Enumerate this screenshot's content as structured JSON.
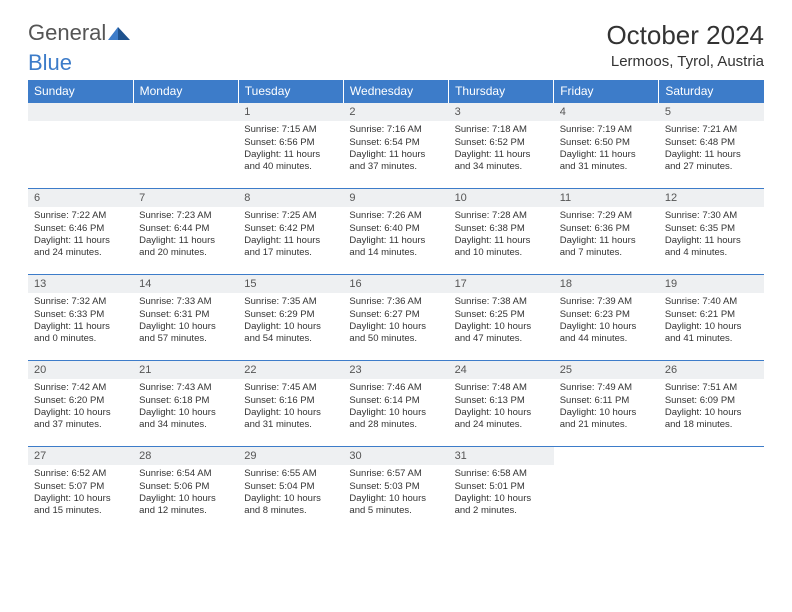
{
  "brand": {
    "part1": "General",
    "part2": "Blue"
  },
  "title": "October 2024",
  "location": "Lermoos, Tyrol, Austria",
  "colors": {
    "header_bg": "#3d7cc9",
    "header_text": "#ffffff",
    "daynum_bg": "#eef0f2",
    "body_text": "#333333",
    "rule": "#3d7cc9",
    "page_bg": "#ffffff"
  },
  "typography": {
    "title_fontsize": 26,
    "location_fontsize": 15,
    "dayheader_fontsize": 12,
    "cell_fontsize": 9.5
  },
  "columns": [
    "Sunday",
    "Monday",
    "Tuesday",
    "Wednesday",
    "Thursday",
    "Friday",
    "Saturday"
  ],
  "weeks": [
    [
      null,
      null,
      {
        "n": "1",
        "sr": "7:15 AM",
        "ss": "6:56 PM",
        "dl": "11 hours and 40 minutes."
      },
      {
        "n": "2",
        "sr": "7:16 AM",
        "ss": "6:54 PM",
        "dl": "11 hours and 37 minutes."
      },
      {
        "n": "3",
        "sr": "7:18 AM",
        "ss": "6:52 PM",
        "dl": "11 hours and 34 minutes."
      },
      {
        "n": "4",
        "sr": "7:19 AM",
        "ss": "6:50 PM",
        "dl": "11 hours and 31 minutes."
      },
      {
        "n": "5",
        "sr": "7:21 AM",
        "ss": "6:48 PM",
        "dl": "11 hours and 27 minutes."
      }
    ],
    [
      {
        "n": "6",
        "sr": "7:22 AM",
        "ss": "6:46 PM",
        "dl": "11 hours and 24 minutes."
      },
      {
        "n": "7",
        "sr": "7:23 AM",
        "ss": "6:44 PM",
        "dl": "11 hours and 20 minutes."
      },
      {
        "n": "8",
        "sr": "7:25 AM",
        "ss": "6:42 PM",
        "dl": "11 hours and 17 minutes."
      },
      {
        "n": "9",
        "sr": "7:26 AM",
        "ss": "6:40 PM",
        "dl": "11 hours and 14 minutes."
      },
      {
        "n": "10",
        "sr": "7:28 AM",
        "ss": "6:38 PM",
        "dl": "11 hours and 10 minutes."
      },
      {
        "n": "11",
        "sr": "7:29 AM",
        "ss": "6:36 PM",
        "dl": "11 hours and 7 minutes."
      },
      {
        "n": "12",
        "sr": "7:30 AM",
        "ss": "6:35 PM",
        "dl": "11 hours and 4 minutes."
      }
    ],
    [
      {
        "n": "13",
        "sr": "7:32 AM",
        "ss": "6:33 PM",
        "dl": "11 hours and 0 minutes."
      },
      {
        "n": "14",
        "sr": "7:33 AM",
        "ss": "6:31 PM",
        "dl": "10 hours and 57 minutes."
      },
      {
        "n": "15",
        "sr": "7:35 AM",
        "ss": "6:29 PM",
        "dl": "10 hours and 54 minutes."
      },
      {
        "n": "16",
        "sr": "7:36 AM",
        "ss": "6:27 PM",
        "dl": "10 hours and 50 minutes."
      },
      {
        "n": "17",
        "sr": "7:38 AM",
        "ss": "6:25 PM",
        "dl": "10 hours and 47 minutes."
      },
      {
        "n": "18",
        "sr": "7:39 AM",
        "ss": "6:23 PM",
        "dl": "10 hours and 44 minutes."
      },
      {
        "n": "19",
        "sr": "7:40 AM",
        "ss": "6:21 PM",
        "dl": "10 hours and 41 minutes."
      }
    ],
    [
      {
        "n": "20",
        "sr": "7:42 AM",
        "ss": "6:20 PM",
        "dl": "10 hours and 37 minutes."
      },
      {
        "n": "21",
        "sr": "7:43 AM",
        "ss": "6:18 PM",
        "dl": "10 hours and 34 minutes."
      },
      {
        "n": "22",
        "sr": "7:45 AM",
        "ss": "6:16 PM",
        "dl": "10 hours and 31 minutes."
      },
      {
        "n": "23",
        "sr": "7:46 AM",
        "ss": "6:14 PM",
        "dl": "10 hours and 28 minutes."
      },
      {
        "n": "24",
        "sr": "7:48 AM",
        "ss": "6:13 PM",
        "dl": "10 hours and 24 minutes."
      },
      {
        "n": "25",
        "sr": "7:49 AM",
        "ss": "6:11 PM",
        "dl": "10 hours and 21 minutes."
      },
      {
        "n": "26",
        "sr": "7:51 AM",
        "ss": "6:09 PM",
        "dl": "10 hours and 18 minutes."
      }
    ],
    [
      {
        "n": "27",
        "sr": "6:52 AM",
        "ss": "5:07 PM",
        "dl": "10 hours and 15 minutes."
      },
      {
        "n": "28",
        "sr": "6:54 AM",
        "ss": "5:06 PM",
        "dl": "10 hours and 12 minutes."
      },
      {
        "n": "29",
        "sr": "6:55 AM",
        "ss": "5:04 PM",
        "dl": "10 hours and 8 minutes."
      },
      {
        "n": "30",
        "sr": "6:57 AM",
        "ss": "5:03 PM",
        "dl": "10 hours and 5 minutes."
      },
      {
        "n": "31",
        "sr": "6:58 AM",
        "ss": "5:01 PM",
        "dl": "10 hours and 2 minutes."
      },
      null,
      null
    ]
  ],
  "labels": {
    "sunrise": "Sunrise:",
    "sunset": "Sunset:",
    "daylight": "Daylight:"
  }
}
